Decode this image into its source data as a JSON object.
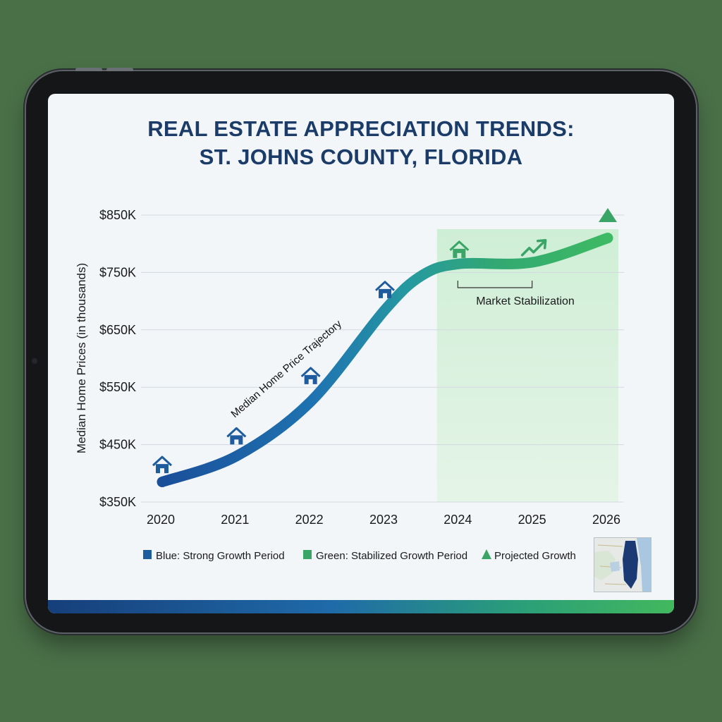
{
  "title_line1": "REAL ESTATE APPRECIATION TRENDS:",
  "title_line2": "ST. JOHNS COUNTY, FLORIDA",
  "colors": {
    "title": "#1b3c68",
    "blue": "#1f5c9e",
    "green": "#3aa566",
    "projected": "#3aa566",
    "shade": "#d6eedb"
  },
  "chart_data": {
    "type": "line",
    "ylabel": "Median Home Prices (in thousands)",
    "xlabel": "",
    "x": [
      2020,
      2021,
      2022,
      2023,
      2024,
      2025,
      2026
    ],
    "xlim": [
      2020,
      2026
    ],
    "ylim": [
      350,
      850
    ],
    "yticks": [
      350,
      450,
      550,
      650,
      750,
      850
    ],
    "ytick_labels": [
      "$350K",
      "$450K",
      "$550K",
      "$650K",
      "$750K",
      "$850K"
    ],
    "xtick_labels": [
      "2020",
      "2021",
      "2022",
      "2023",
      "2024",
      "2025",
      "2026"
    ],
    "grid": true,
    "series": [
      {
        "name": "Median Home Price Trajectory",
        "x": [
          2020,
          2021,
          2022,
          2023,
          2023.5,
          2024,
          2025,
          2026
        ],
        "values": [
          385,
          430,
          525,
          685,
          745,
          765,
          768,
          810
        ]
      }
    ],
    "shaded_region": {
      "x_start": 2023.7,
      "x_end": 2026.2
    },
    "annotations": [
      {
        "text": "Median Home Price Trajectory",
        "type": "line_label"
      },
      {
        "text": "Market Stabilization",
        "x_start": 2024,
        "x_end": 2025,
        "y": 720
      }
    ],
    "projected_marker": {
      "x": 2026,
      "y": 850
    },
    "house_markers": [
      {
        "x": 2020,
        "y": 415
      },
      {
        "x": 2021,
        "y": 465
      },
      {
        "x": 2022,
        "y": 570
      },
      {
        "x": 2023,
        "y": 720
      },
      {
        "x": 2024,
        "y": 790
      }
    ],
    "trend_arrow": {
      "x": 2025,
      "y": 795
    },
    "legend": [
      {
        "label": "Blue: Strong Growth Period",
        "shape": "square",
        "color": "#1f5c9e"
      },
      {
        "label": "Green: Stabilized Growth Period",
        "shape": "square",
        "color": "#3aa566"
      },
      {
        "label": "Projected Growth",
        "shape": "triangle",
        "color": "#3aa566"
      }
    ],
    "legend_position": "bottom"
  }
}
